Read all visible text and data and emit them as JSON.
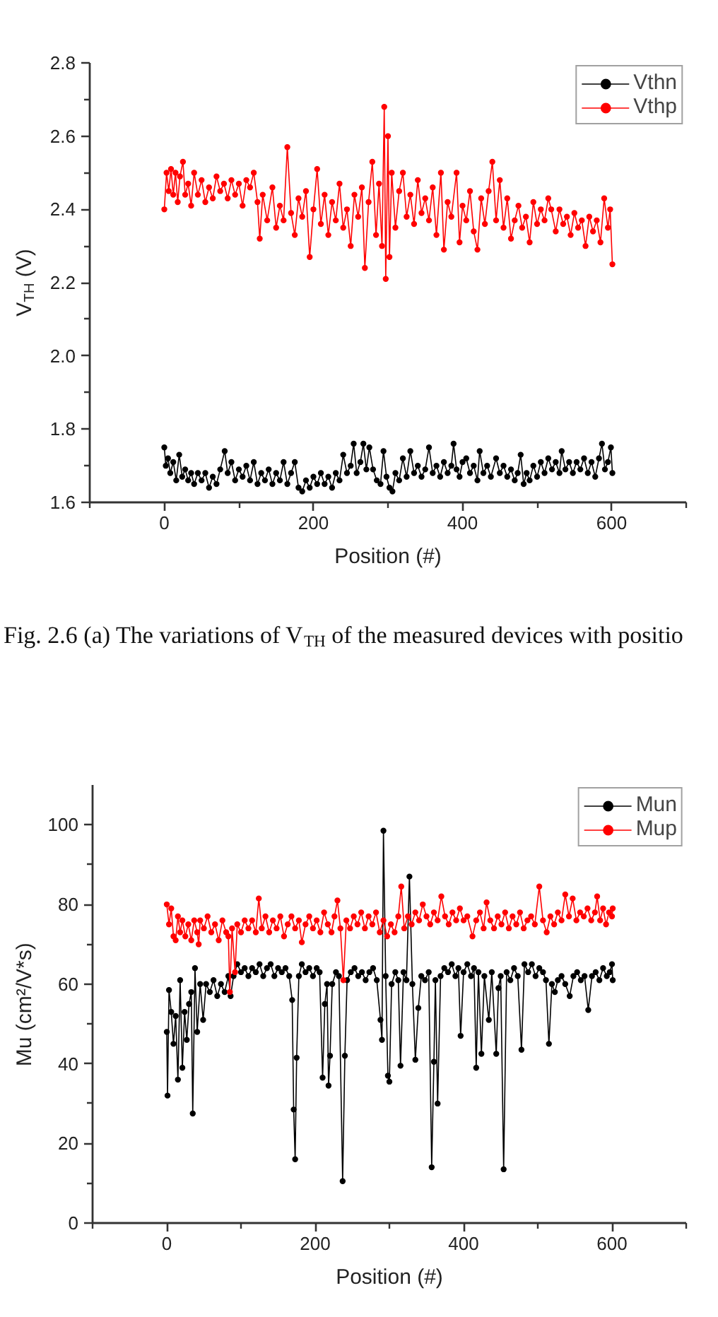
{
  "chart_data": [
    {
      "type": "line",
      "xlabel": "Position (#)",
      "ylabel": "V$_{TH}$ (V)",
      "xlim": [
        -100,
        700
      ],
      "xticks": [
        {
          "value": -100,
          "label": null
        },
        0,
        {
          "value": 100,
          "label": null
        },
        200,
        {
          "value": 300,
          "label": null
        },
        400,
        {
          "value": 500,
          "label": null
        },
        600,
        {
          "value": 700,
          "label": null
        }
      ],
      "ylim": [
        1.6,
        2.8
      ],
      "yticks": [
        1.6,
        {
          "value": 1.7,
          "label": null
        },
        1.8,
        {
          "value": 1.9,
          "label": null
        },
        {
          "value": 2,
          "label": "2.0"
        },
        {
          "value": 2.1,
          "label": null
        },
        2.2,
        {
          "value": 2.3,
          "label": null
        },
        2.4,
        {
          "value": 2.5,
          "label": null
        },
        2.6,
        {
          "value": 2.7,
          "label": null
        },
        2.8
      ],
      "legend": "top right",
      "marker": "circle",
      "line_style": "solid",
      "series": [
        {
          "name": "Vthn",
          "color": "#000000",
          "x": [
            0,
            2,
            5,
            8,
            12,
            16,
            20,
            24,
            28,
            32,
            36,
            40,
            45,
            50,
            55,
            60,
            65,
            70,
            75,
            81,
            85,
            90,
            95,
            100,
            105,
            110,
            115,
            120,
            125,
            130,
            135,
            140,
            145,
            150,
            155,
            160,
            165,
            170,
            175,
            180,
            185,
            190,
            195,
            200,
            205,
            210,
            215,
            220,
            225,
            230,
            235,
            240,
            245,
            250,
            254,
            258,
            263,
            267,
            271,
            275,
            280,
            285,
            290,
            294,
            298,
            302,
            306,
            310,
            315,
            320,
            325,
            330,
            335,
            340,
            345,
            350,
            355,
            360,
            365,
            370,
            375,
            380,
            385,
            388,
            392,
            396,
            400,
            405,
            410,
            415,
            420,
            423,
            428,
            433,
            438,
            445,
            450,
            455,
            460,
            465,
            470,
            474,
            478,
            482,
            486,
            490,
            495,
            500,
            505,
            510,
            515,
            520,
            525,
            530,
            533,
            538,
            543,
            548,
            553,
            558,
            563,
            568,
            573,
            578,
            583,
            587,
            591,
            595,
            599,
            601
          ],
          "values": [
            1.75,
            1.7,
            1.72,
            1.68,
            1.71,
            1.66,
            1.73,
            1.67,
            1.69,
            1.66,
            1.68,
            1.65,
            1.68,
            1.66,
            1.68,
            1.64,
            1.67,
            1.65,
            1.69,
            1.74,
            1.68,
            1.71,
            1.66,
            1.69,
            1.67,
            1.7,
            1.66,
            1.71,
            1.65,
            1.68,
            1.66,
            1.69,
            1.65,
            1.68,
            1.66,
            1.71,
            1.65,
            1.68,
            1.71,
            1.64,
            1.63,
            1.66,
            1.64,
            1.67,
            1.65,
            1.68,
            1.65,
            1.67,
            1.64,
            1.68,
            1.66,
            1.73,
            1.68,
            1.7,
            1.76,
            1.68,
            1.71,
            1.76,
            1.69,
            1.75,
            1.69,
            1.66,
            1.65,
            1.74,
            1.67,
            1.64,
            1.63,
            1.68,
            1.66,
            1.72,
            1.67,
            1.74,
            1.68,
            1.7,
            1.67,
            1.69,
            1.75,
            1.68,
            1.7,
            1.67,
            1.71,
            1.68,
            1.7,
            1.76,
            1.69,
            1.67,
            1.71,
            1.72,
            1.68,
            1.7,
            1.66,
            1.74,
            1.68,
            1.7,
            1.67,
            1.72,
            1.68,
            1.7,
            1.67,
            1.69,
            1.66,
            1.68,
            1.73,
            1.65,
            1.68,
            1.66,
            1.7,
            1.67,
            1.71,
            1.68,
            1.72,
            1.69,
            1.71,
            1.68,
            1.74,
            1.69,
            1.71,
            1.68,
            1.71,
            1.69,
            1.72,
            1.68,
            1.71,
            1.67,
            1.72,
            1.76,
            1.69,
            1.71,
            1.75,
            1.68
          ]
        },
        {
          "name": "Vthp",
          "color": "#ff0000",
          "x": [
            0,
            3,
            6,
            9,
            12,
            15,
            18,
            21,
            25,
            28,
            32,
            36,
            40,
            45,
            50,
            55,
            60,
            65,
            70,
            75,
            80,
            85,
            90,
            95,
            100,
            105,
            110,
            115,
            120,
            125,
            128,
            132,
            138,
            145,
            150,
            155,
            160,
            165,
            170,
            175,
            180,
            185,
            190,
            195,
            200,
            205,
            210,
            215,
            220,
            225,
            230,
            235,
            240,
            245,
            250,
            255,
            260,
            265,
            269,
            274,
            279,
            284,
            288,
            292,
            295,
            297,
            300,
            302,
            305,
            310,
            315,
            320,
            325,
            330,
            335,
            340,
            345,
            350,
            355,
            360,
            365,
            371,
            375,
            380,
            385,
            392,
            396,
            400,
            405,
            410,
            415,
            420,
            425,
            430,
            435,
            440,
            445,
            450,
            455,
            460,
            465,
            470,
            475,
            480,
            485,
            490,
            495,
            500,
            505,
            510,
            515,
            519,
            525,
            530,
            535,
            540,
            545,
            550,
            555,
            560,
            565,
            570,
            575,
            580,
            585,
            590,
            595,
            598,
            601
          ],
          "values": [
            2.4,
            2.5,
            2.45,
            2.51,
            2.44,
            2.5,
            2.42,
            2.49,
            2.53,
            2.44,
            2.47,
            2.41,
            2.5,
            2.44,
            2.48,
            2.42,
            2.46,
            2.43,
            2.49,
            2.45,
            2.47,
            2.43,
            2.48,
            2.44,
            2.47,
            2.41,
            2.48,
            2.46,
            2.5,
            2.42,
            2.32,
            2.44,
            2.37,
            2.46,
            2.35,
            2.41,
            2.37,
            2.57,
            2.39,
            2.33,
            2.43,
            2.38,
            2.45,
            2.27,
            2.4,
            2.51,
            2.36,
            2.44,
            2.33,
            2.42,
            2.37,
            2.47,
            2.35,
            2.4,
            2.3,
            2.44,
            2.38,
            2.46,
            2.24,
            2.42,
            2.53,
            2.33,
            2.47,
            2.3,
            2.68,
            2.21,
            2.6,
            2.27,
            2.5,
            2.35,
            2.45,
            2.5,
            2.38,
            2.44,
            2.36,
            2.48,
            2.39,
            2.43,
            2.37,
            2.46,
            2.33,
            2.5,
            2.29,
            2.42,
            2.38,
            2.5,
            2.31,
            2.41,
            2.37,
            2.45,
            2.34,
            2.29,
            2.43,
            2.36,
            2.45,
            2.53,
            2.37,
            2.48,
            2.35,
            2.43,
            2.32,
            2.37,
            2.41,
            2.35,
            2.38,
            2.31,
            2.42,
            2.36,
            2.4,
            2.37,
            2.43,
            2.4,
            2.34,
            2.4,
            2.36,
            2.38,
            2.33,
            2.39,
            2.35,
            2.37,
            2.3,
            2.38,
            2.34,
            2.37,
            2.31,
            2.43,
            2.35,
            2.4,
            2.25
          ]
        }
      ],
      "annotations": [
        "Fig. 2.6 (a) The variations of V$_{TH}$ of the measured devices with positio"
      ]
    },
    {
      "type": "line",
      "xlabel": "Position (#)",
      "ylabel": "Mu (cm²/V*s)",
      "xlim": [
        -100,
        700
      ],
      "xticks": [
        {
          "value": -100,
          "label": null
        },
        0,
        {
          "value": 100,
          "label": null
        },
        200,
        {
          "value": 300,
          "label": null
        },
        400,
        {
          "value": 500,
          "label": null
        },
        600,
        {
          "value": 700,
          "label": null
        }
      ],
      "ylim": [
        0,
        110
      ],
      "yticks": [
        0,
        {
          "value": 10,
          "label": null
        },
        20,
        {
          "value": 30,
          "label": null
        },
        40,
        {
          "value": 50,
          "label": null
        },
        60,
        {
          "value": 70,
          "label": null
        },
        80,
        {
          "value": 90,
          "label": null
        },
        100
      ],
      "legend": "top right",
      "marker": "circle",
      "line_style": "solid",
      "series": [
        {
          "name": "Mun",
          "color": "#000000",
          "x": [
            0,
            1,
            3,
            6,
            9,
            12,
            15,
            18,
            21,
            24,
            27,
            30,
            33,
            35,
            38,
            41,
            45,
            49,
            53,
            58,
            63,
            68,
            73,
            78,
            83,
            86,
            90,
            95,
            100,
            105,
            110,
            115,
            120,
            125,
            130,
            135,
            140,
            145,
            150,
            155,
            160,
            165,
            169,
            171,
            173,
            175,
            178,
            182,
            187,
            192,
            197,
            202,
            206,
            210,
            213,
            216,
            218,
            220,
            223,
            228,
            232,
            237,
            240,
            243,
            248,
            253,
            258,
            263,
            268,
            273,
            278,
            283,
            288,
            290,
            292,
            295,
            298,
            300,
            303,
            308,
            312,
            315,
            319,
            323,
            327,
            331,
            335,
            339,
            343,
            348,
            353,
            357,
            360,
            362,
            365,
            369,
            374,
            379,
            384,
            389,
            393,
            396,
            400,
            405,
            410,
            414,
            417,
            420,
            424,
            428,
            434,
            438,
            444,
            447,
            450,
            454,
            458,
            463,
            468,
            473,
            478,
            482,
            487,
            492,
            497,
            502,
            507,
            511,
            515,
            519,
            523,
            527,
            532,
            537,
            543,
            548,
            553,
            558,
            563,
            568,
            573,
            578,
            583,
            588,
            593,
            597,
            600,
            601
          ],
          "values": [
            48,
            32,
            58.5,
            53,
            45,
            52,
            36,
            61,
            39,
            53,
            46,
            55,
            58,
            27.5,
            64,
            48,
            60,
            51,
            60,
            58,
            61,
            57,
            60,
            58,
            62,
            57,
            62,
            65,
            63,
            64,
            62,
            64,
            63,
            65,
            62,
            64,
            65,
            62,
            64,
            63,
            64,
            62,
            56,
            28.5,
            16,
            41.5,
            62,
            65,
            63,
            64,
            62,
            64,
            63,
            36.5,
            55,
            60,
            34.5,
            42,
            60,
            63,
            62,
            10.5,
            42,
            61,
            63,
            64,
            62,
            63,
            61,
            63,
            64,
            61,
            51,
            46,
            98.5,
            62,
            37,
            35.5,
            60,
            63,
            61,
            39.5,
            63,
            61,
            87,
            60,
            41,
            54,
            62,
            61,
            63,
            14,
            40.5,
            61,
            30,
            62,
            64,
            63,
            65,
            62,
            64,
            47,
            63,
            65,
            62,
            64,
            39,
            63,
            42.5,
            62,
            51,
            63,
            42.5,
            59,
            62,
            13.5,
            63,
            61,
            64,
            62,
            43.5,
            65,
            63,
            65,
            62,
            64,
            63,
            61,
            45,
            60,
            58,
            61,
            62,
            60,
            57,
            62,
            63,
            61,
            62,
            53.5,
            62,
            63,
            61,
            64,
            62,
            63,
            65,
            61
          ]
        },
        {
          "name": "Mup",
          "color": "#ff0000",
          "x": [
            0,
            3,
            6,
            9,
            12,
            15,
            18,
            21,
            25,
            29,
            33,
            37,
            41,
            43,
            45,
            50,
            55,
            60,
            65,
            70,
            75,
            80,
            83,
            85,
            88,
            92,
            95,
            100,
            105,
            110,
            115,
            120,
            124,
            128,
            133,
            138,
            143,
            148,
            153,
            158,
            163,
            168,
            173,
            178,
            182,
            187,
            192,
            197,
            202,
            207,
            212,
            217,
            222,
            226,
            230,
            234,
            238,
            242,
            247,
            252,
            257,
            262,
            267,
            272,
            277,
            282,
            287,
            292,
            297,
            302,
            307,
            312,
            316,
            320,
            325,
            330,
            335,
            340,
            345,
            350,
            355,
            360,
            365,
            370,
            375,
            380,
            385,
            390,
            395,
            400,
            405,
            412,
            417,
            422,
            427,
            431,
            436,
            441,
            446,
            451,
            456,
            461,
            466,
            471,
            476,
            481,
            486,
            491,
            496,
            502,
            507,
            512,
            517,
            522,
            527,
            532,
            537,
            542,
            547,
            552,
            557,
            562,
            567,
            572,
            577,
            580,
            584,
            588,
            592,
            596,
            600,
            601
          ],
          "values": [
            80,
            75,
            79,
            72,
            71,
            77,
            73,
            76,
            72,
            75,
            71,
            76,
            73,
            70,
            76,
            74,
            77,
            73,
            75,
            71,
            76,
            73,
            72,
            58,
            74,
            63,
            75,
            73,
            76,
            74,
            76,
            73,
            81.5,
            74,
            77,
            73,
            76,
            74,
            77,
            72,
            75,
            77,
            74,
            76,
            70.5,
            75,
            77,
            74,
            76,
            73,
            78,
            75,
            73,
            77,
            81,
            74,
            61,
            76,
            74,
            77,
            75,
            78,
            74,
            77,
            75,
            78,
            73,
            76,
            72,
            75,
            73,
            77,
            84.5,
            74,
            77,
            75,
            78,
            76,
            80,
            77,
            75,
            78,
            76,
            82,
            77,
            75,
            78,
            76,
            79,
            76,
            77,
            72,
            76,
            78,
            74,
            80.5,
            76,
            74,
            77,
            75,
            78,
            74,
            77,
            75,
            78,
            74,
            76,
            77,
            75,
            84.5,
            76,
            73,
            77,
            75,
            78,
            76,
            82.5,
            77,
            81.5,
            76,
            78,
            77,
            79,
            76,
            78,
            82,
            76,
            79,
            75,
            78,
            77,
            79
          ]
        }
      ]
    }
  ]
}
